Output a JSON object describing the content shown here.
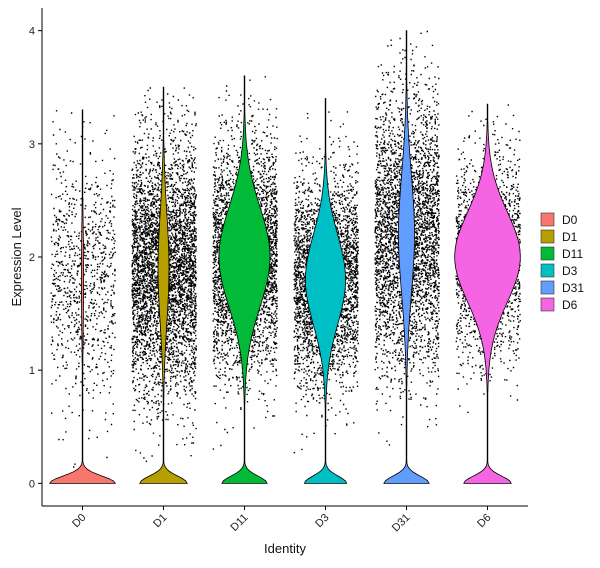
{
  "chart_data": {
    "type": "violin",
    "xlabel": "Identity",
    "ylabel": "Expression Level",
    "ylim": [
      -0.2,
      4.2
    ],
    "yticks": [
      0,
      1,
      2,
      3,
      4
    ],
    "categories": [
      "D0",
      "D1",
      "D11",
      "D3",
      "D31",
      "D6"
    ],
    "legend": {
      "position": "right",
      "items": [
        {
          "label": "D0",
          "color": "#F8766D"
        },
        {
          "label": "D1",
          "color": "#B79F00"
        },
        {
          "label": "D11",
          "color": "#00BA38"
        },
        {
          "label": "D3",
          "color": "#00BFC4"
        },
        {
          "label": "D31",
          "color": "#619CFF"
        },
        {
          "label": "D6",
          "color": "#F564E3"
        }
      ]
    },
    "series": [
      {
        "name": "D0",
        "color": "#F8766D",
        "max": 3.3,
        "zero_peak": 0.9,
        "mode": 1.8,
        "spread": 0.55,
        "body_width": 0.03,
        "points": 900
      },
      {
        "name": "D1",
        "color": "#B79F00",
        "max": 3.5,
        "zero_peak": 0.65,
        "mode": 1.9,
        "spread": 0.55,
        "body_width": 0.15,
        "points": 4200
      },
      {
        "name": "D11",
        "color": "#00BA38",
        "max": 3.6,
        "zero_peak": 0.62,
        "mode": 2.0,
        "spread": 0.5,
        "body_width": 0.7,
        "points": 3800
      },
      {
        "name": "D3",
        "color": "#00BFC4",
        "max": 3.4,
        "zero_peak": 0.58,
        "mode": 1.8,
        "spread": 0.45,
        "body_width": 0.55,
        "points": 3200
      },
      {
        "name": "D31",
        "color": "#619CFF",
        "max": 4.0,
        "zero_peak": 0.62,
        "mode": 2.2,
        "spread": 0.6,
        "body_width": 0.22,
        "points": 5200
      },
      {
        "name": "D6",
        "color": "#F564E3",
        "max": 3.35,
        "zero_peak": 0.65,
        "mode": 2.0,
        "spread": 0.45,
        "body_width": 0.9,
        "points": 1800
      }
    ]
  }
}
